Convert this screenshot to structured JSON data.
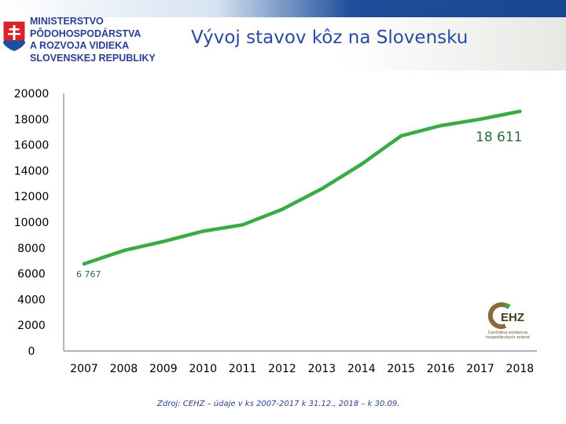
{
  "header": {
    "logo_lines": [
      "MINISTERSTVO",
      "PÔDOHOSPODÁRSTVA",
      "A ROZVOJA VIDIEKA",
      "SLOVENSKEJ REPUBLIKY"
    ],
    "title": "Vývoj stavov kôz na Slovensku"
  },
  "chart_data": {
    "type": "line",
    "title": "Vývoj stavov kôz na Slovensku",
    "xlabel": "",
    "ylabel": "",
    "categories": [
      "2007",
      "2008",
      "2009",
      "2010",
      "2011",
      "2012",
      "2013",
      "2014",
      "2015",
      "2016",
      "2017",
      "2018"
    ],
    "series": [
      {
        "color": "#3aaa45",
        "values": [
          6767,
          7800,
          8500,
          9300,
          9800,
          11000,
          12600,
          14500,
          16700,
          17500,
          18000,
          18611
        ]
      }
    ],
    "ylim": [
      0,
      20000
    ],
    "yticks": [
      "20000",
      "18000",
      "16000",
      "14000",
      "12000",
      "10000",
      "8000",
      "6000",
      "4000",
      "2000",
      "0"
    ],
    "data_labels": {
      "first": "6 767",
      "last": "18 611"
    },
    "grid": false
  },
  "source": "Zdroj: CEHZ – údaje v ks 2007-2017 k 31.12., 2018 – k 30.09.",
  "cehz_logo": {
    "mark": "EHZ",
    "line1": "Centrálna evidencia",
    "line2": "hospodárskych zvierat"
  },
  "colors": {
    "line": "#3aaa45",
    "title": "#2a4aa0",
    "ministry": "#2b3f8f",
    "topbar": "#1f4f9a"
  }
}
